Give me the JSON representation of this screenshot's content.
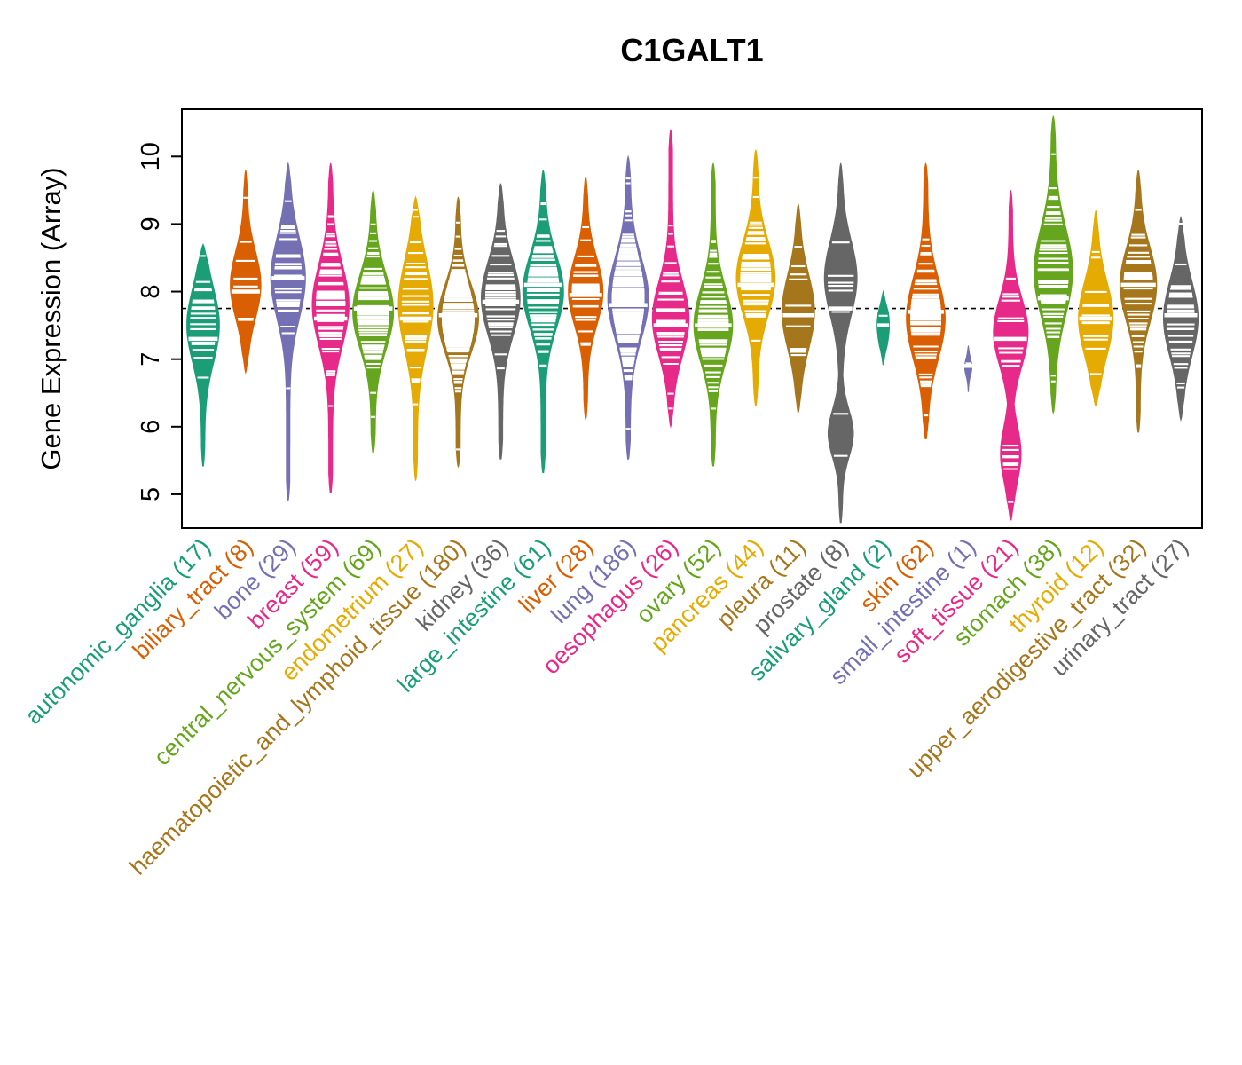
{
  "chart_data": {
    "type": "violin",
    "title": "C1GALT1",
    "ylabel": "Gene Expression (Array)",
    "xlabel": "",
    "ylim": [
      4.5,
      10.7
    ],
    "yticks": [
      5,
      6,
      7,
      8,
      9,
      10
    ],
    "reference_line": 7.75,
    "grid": false,
    "legend": "none",
    "palette": [
      "#1B9E77",
      "#D95F02",
      "#7570B3",
      "#E7298A",
      "#66A61E",
      "#E6AB02",
      "#A6761D",
      "#666666"
    ],
    "categories": [
      {
        "label": "autonomic_ganglia",
        "n": 17,
        "color": "#1B9E77",
        "min": 5.4,
        "max": 8.7,
        "median": 7.3,
        "mode": 7.5,
        "sigma": 0.55,
        "maxw": 0.8
      },
      {
        "label": "biliary_tract",
        "n": 8,
        "color": "#D95F02",
        "min": 6.8,
        "max": 9.8,
        "median": 8.0,
        "mode": 8.1,
        "sigma": 0.5,
        "maxw": 0.75
      },
      {
        "label": "bone",
        "n": 29,
        "color": "#7570B3",
        "min": 4.9,
        "max": 9.9,
        "median": 8.2,
        "mode": 8.2,
        "sigma": 0.6,
        "maxw": 0.85
      },
      {
        "label": "breast",
        "n": 59,
        "color": "#E7298A",
        "min": 5.0,
        "max": 9.9,
        "median": 7.6,
        "mode": 7.8,
        "sigma": 0.6,
        "maxw": 0.9
      },
      {
        "label": "central_nervous_system",
        "n": 69,
        "color": "#66A61E",
        "min": 5.6,
        "max": 9.5,
        "median": 7.75,
        "mode": 7.7,
        "sigma": 0.55,
        "maxw": 1.0
      },
      {
        "label": "endometrium",
        "n": 27,
        "color": "#E6AB02",
        "min": 5.2,
        "max": 9.4,
        "median": 7.6,
        "mode": 7.8,
        "sigma": 0.65,
        "maxw": 0.85
      },
      {
        "label": "haematopoietic_and_lymphoid_tissue",
        "n": 180,
        "color": "#A6761D",
        "min": 5.4,
        "max": 9.4,
        "median": 7.65,
        "mode": 7.6,
        "sigma": 0.5,
        "maxw": 1.0
      },
      {
        "label": "kidney",
        "n": 36,
        "color": "#666666",
        "min": 5.5,
        "max": 9.6,
        "median": 7.85,
        "mode": 7.9,
        "sigma": 0.55,
        "maxw": 0.95
      },
      {
        "label": "large_intestine",
        "n": 61,
        "color": "#1B9E77",
        "min": 5.3,
        "max": 9.8,
        "median": 8.1,
        "mode": 8.0,
        "sigma": 0.55,
        "maxw": 1.0
      },
      {
        "label": "liver",
        "n": 28,
        "color": "#D95F02",
        "min": 6.1,
        "max": 9.7,
        "median": 7.95,
        "mode": 8.0,
        "sigma": 0.5,
        "maxw": 0.85
      },
      {
        "label": "lung",
        "n": 186,
        "color": "#7570B3",
        "min": 5.5,
        "max": 10.0,
        "median": 7.8,
        "mode": 7.9,
        "sigma": 0.6,
        "maxw": 1.0
      },
      {
        "label": "oesophagus",
        "n": 26,
        "color": "#E7298A",
        "min": 6.0,
        "max": 10.4,
        "median": 7.5,
        "mode": 7.6,
        "sigma": 0.55,
        "maxw": 0.9
      },
      {
        "label": "ovary",
        "n": 52,
        "color": "#66A61E",
        "min": 5.4,
        "max": 9.9,
        "median": 7.5,
        "mode": 7.5,
        "sigma": 0.55,
        "maxw": 0.95
      },
      {
        "label": "pancreas",
        "n": 44,
        "color": "#E6AB02",
        "min": 6.3,
        "max": 10.1,
        "median": 8.1,
        "mode": 8.2,
        "sigma": 0.55,
        "maxw": 0.95
      },
      {
        "label": "pleura",
        "n": 11,
        "color": "#A6761D",
        "min": 6.2,
        "max": 9.3,
        "median": 7.65,
        "mode": 7.7,
        "sigma": 0.55,
        "maxw": 0.8
      },
      {
        "label": "prostate",
        "n": 8,
        "color": "#666666",
        "min": 4.55,
        "max": 9.9,
        "median": 7.75,
        "mode": 8.2,
        "sigma": 0.55,
        "mode2": 5.9,
        "sigma2": 0.35,
        "amp2": 0.75,
        "maxw": 0.8
      },
      {
        "label": "salivary_gland",
        "n": 2,
        "color": "#1B9E77",
        "min": 6.9,
        "max": 8.0,
        "median": 7.5,
        "mode": 7.5,
        "sigma": 0.3,
        "maxw": 0.3
      },
      {
        "label": "skin",
        "n": 62,
        "color": "#D95F02",
        "min": 5.8,
        "max": 9.9,
        "median": 7.7,
        "mode": 7.6,
        "sigma": 0.6,
        "maxw": 0.95
      },
      {
        "label": "small_intestine",
        "n": 1,
        "color": "#7570B3",
        "min": 6.5,
        "max": 7.2,
        "median": 6.9,
        "mode": 6.9,
        "sigma": 0.15,
        "maxw": 0.18
      },
      {
        "label": "soft_tissue",
        "n": 21,
        "color": "#E7298A",
        "min": 4.6,
        "max": 9.5,
        "median": 7.3,
        "mode": 7.4,
        "sigma": 0.5,
        "mode2": 5.6,
        "sigma2": 0.4,
        "amp2": 0.55,
        "maxw": 0.85
      },
      {
        "label": "stomach",
        "n": 38,
        "color": "#66A61E",
        "min": 6.2,
        "max": 10.6,
        "median": 7.9,
        "mode": 8.3,
        "sigma": 0.65,
        "maxw": 0.95
      },
      {
        "label": "thyroid",
        "n": 12,
        "color": "#E6AB02",
        "min": 6.3,
        "max": 9.2,
        "median": 7.6,
        "mode": 7.6,
        "sigma": 0.55,
        "maxw": 0.85
      },
      {
        "label": "upper_aerodigestive_tract",
        "n": 32,
        "color": "#A6761D",
        "min": 5.9,
        "max": 9.8,
        "median": 8.1,
        "mode": 8.1,
        "sigma": 0.55,
        "maxw": 0.9
      },
      {
        "label": "urinary_tract",
        "n": 27,
        "color": "#666666",
        "min": 6.1,
        "max": 9.1,
        "median": 7.65,
        "mode": 7.6,
        "sigma": 0.55,
        "maxw": 0.85
      }
    ]
  }
}
